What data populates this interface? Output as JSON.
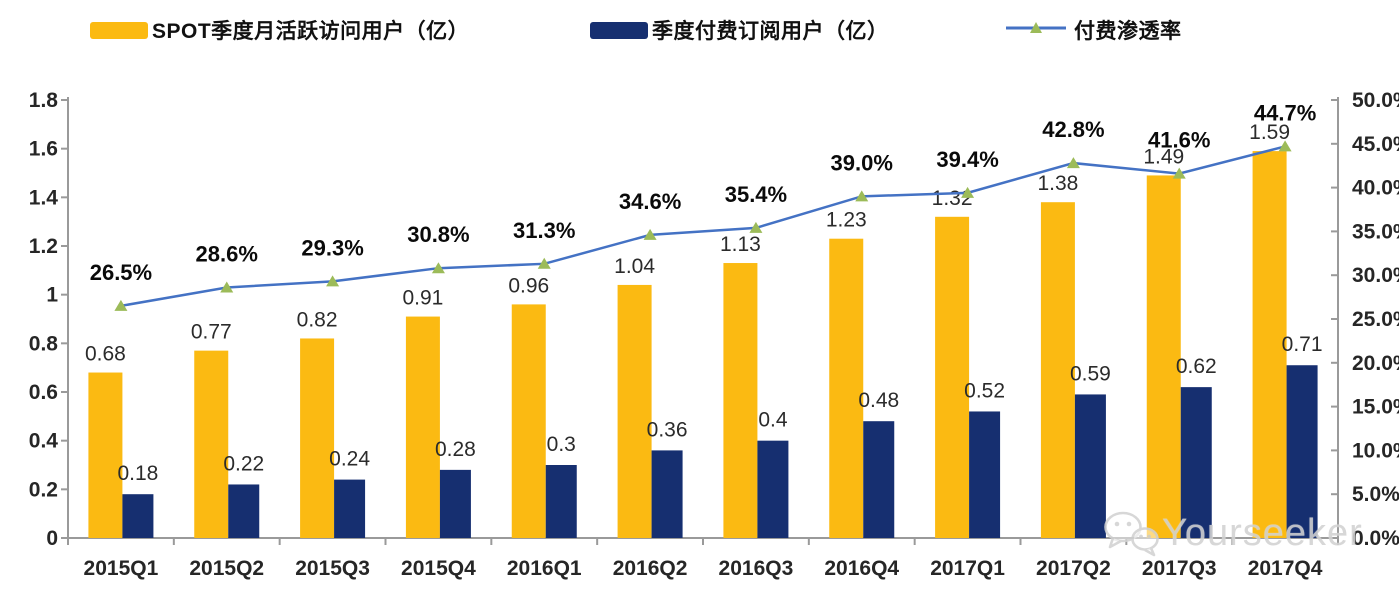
{
  "legend": {
    "position": "top",
    "items": [
      {
        "label": "SPOT季度月活跃访问用户（亿）",
        "swatch": "bar",
        "color": "#FBBA12"
      },
      {
        "label": "季度付费订阅用户（亿）",
        "swatch": "bar",
        "color": "#162F70"
      },
      {
        "label": "付费渗透率",
        "swatch": "line-marker",
        "color": "#4472C4",
        "marker_color": "#9CBB59"
      }
    ]
  },
  "watermark": {
    "text": "Yourseeker",
    "icon": "wechat-icon"
  },
  "chart_data": {
    "type": "combo (bar + line)",
    "title": "",
    "xlabel": "",
    "ylabel_left": "",
    "ylabel_right": "",
    "grid": false,
    "legend_position": "top",
    "categories": [
      "2015Q1",
      "2015Q2",
      "2015Q3",
      "2015Q4",
      "2016Q1",
      "2016Q2",
      "2016Q3",
      "2016Q4",
      "2017Q1",
      "2017Q2",
      "2017Q3",
      "2017Q4"
    ],
    "series": [
      {
        "name": "SPOT季度月活跃访问用户（亿）",
        "type": "bar",
        "axis": "left",
        "color": "#FBBA12",
        "values": [
          0.68,
          0.77,
          0.82,
          0.91,
          0.96,
          1.04,
          1.13,
          1.23,
          1.32,
          1.38,
          1.49,
          1.59
        ],
        "labels": [
          "0.68",
          "0.77",
          "0.82",
          "0.91",
          "0.96",
          "1.04",
          "1.13",
          "1.23",
          "1.32",
          "1.38",
          "1.49",
          "1.59"
        ]
      },
      {
        "name": "季度付费订阅用户（亿）",
        "type": "bar",
        "axis": "left",
        "color": "#162F70",
        "values": [
          0.18,
          0.22,
          0.24,
          0.28,
          0.3,
          0.36,
          0.4,
          0.48,
          0.52,
          0.59,
          0.62,
          0.71
        ],
        "labels": [
          "0.18",
          "0.22",
          "0.24",
          "0.28",
          "0.3",
          "0.36",
          "0.4",
          "0.48",
          "0.52",
          "0.59",
          "0.62",
          "0.71"
        ]
      },
      {
        "name": "付费渗透率",
        "type": "line",
        "axis": "right",
        "color": "#4472C4",
        "marker": "triangle",
        "marker_color": "#9CBB59",
        "values": [
          26.5,
          28.6,
          29.3,
          30.8,
          31.3,
          34.6,
          35.4,
          39.0,
          39.4,
          42.8,
          41.6,
          44.7
        ],
        "labels": [
          "26.5%",
          "28.6%",
          "29.3%",
          "30.8%",
          "31.3%",
          "34.6%",
          "35.4%",
          "39.0%",
          "39.4%",
          "42.8%",
          "41.6%",
          "44.7%"
        ]
      }
    ],
    "left_axis": {
      "min": 0,
      "max": 1.8,
      "ticks": [
        "1.8",
        "1.6",
        "1.4",
        "1.2",
        "1",
        "0.8",
        "0.6",
        "0.4",
        "0.2",
        "0"
      ]
    },
    "right_axis": {
      "min": 0,
      "max": 50,
      "ticks": [
        "50.0%",
        "45.0%",
        "40.0%",
        "35.0%",
        "30.0%",
        "25.0%",
        "20.0%",
        "15.0%",
        "10.0%",
        "5.0%",
        "0.0%"
      ]
    },
    "axis_color": "#9a9a9a"
  }
}
